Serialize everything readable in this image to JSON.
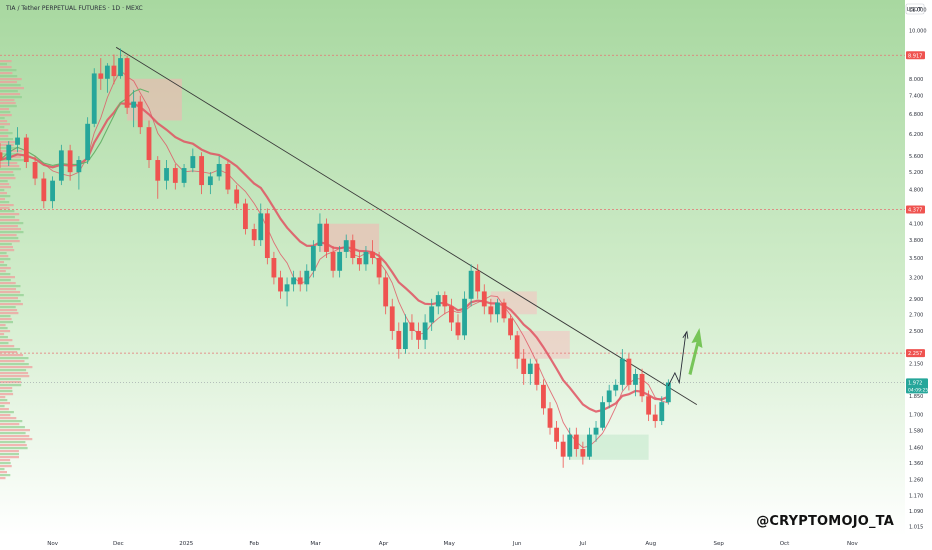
{
  "header": {
    "title": "TIA / Tether PERPETUAL FUTURES · 1D · MEXC"
  },
  "watermark": "@CRYPTOMOJO_TA",
  "colors": {
    "up": "#26a69a",
    "down": "#ef5350",
    "ema": "#e05262",
    "sma": "#69b36b",
    "trend": "#3a3a3a",
    "level": "#e57373",
    "projection": "#2a2e39",
    "arrow": "#6cc04a",
    "current_tag": "#26a69a",
    "level_tag": "#ef5350"
  },
  "icons": [
    "up-arrow-icon"
  ],
  "chart_data": {
    "type": "candlestick",
    "title": "TIA / Tether PERPETUAL FUTURES · 1D · MEXC",
    "y_axis": {
      "unit": "USDT",
      "scale": "log",
      "range": [
        0.98,
        11.4
      ],
      "ticks": [
        "11.000",
        "10.000",
        "8.000",
        "7.400",
        "6.800",
        "6.200",
        "5.600",
        "5.200",
        "4.800",
        "4.100",
        "3.800",
        "3.500",
        "3.200",
        "2.900",
        "2.700",
        "2.500",
        "2.150",
        "1.850",
        "1.700",
        "1.580",
        "1.460",
        "1.360",
        "1.260",
        "1.170",
        "1.090",
        "1.015"
      ],
      "tick_values": [
        11.0,
        10.0,
        8.0,
        7.4,
        6.8,
        6.2,
        5.6,
        5.2,
        4.8,
        4.1,
        3.8,
        3.5,
        3.2,
        2.9,
        2.7,
        2.5,
        2.15,
        1.85,
        1.7,
        1.58,
        1.46,
        1.36,
        1.26,
        1.17,
        1.09,
        1.015
      ]
    },
    "x_axis": {
      "range": [
        "2024-10-08",
        "2025-11-25"
      ],
      "ticks": [
        "Nov",
        "Dec",
        "2025",
        "Feb",
        "Mar",
        "Apr",
        "May",
        "Jun",
        "Jul",
        "Aug",
        "Sep",
        "Oct",
        "Nov"
      ],
      "tick_dates": [
        "2024-11-01",
        "2024-12-01",
        "2025-01-01",
        "2025-02-01",
        "2025-03-01",
        "2025-04-01",
        "2025-05-01",
        "2025-06-01",
        "2025-07-01",
        "2025-08-01",
        "2025-09-01",
        "2025-10-01",
        "2025-11-01"
      ]
    },
    "horizontal_levels": [
      {
        "price": 8.917,
        "label": "8.917"
      },
      {
        "price": 4.377,
        "label": "4.377"
      },
      {
        "price": 2.257,
        "label": "2.257"
      }
    ],
    "current_price": {
      "price": 1.972,
      "label": "1.972",
      "countdown": "04:09:25"
    },
    "trendline": {
      "start": {
        "date": "2024-11-30",
        "price": 9.25
      },
      "end": {
        "date": "2025-08-22",
        "price": 1.78
      }
    },
    "projection": [
      {
        "date": "2025-08-09",
        "price": 1.94
      },
      {
        "date": "2025-08-12",
        "price": 2.06
      },
      {
        "date": "2025-08-14",
        "price": 1.97
      },
      {
        "date": "2025-08-17",
        "price": 2.48
      }
    ],
    "candles": [
      {
        "date": "2024-10-08",
        "open": 5.7,
        "high": 5.95,
        "low": 5.3,
        "close": 5.5
      },
      {
        "date": "2024-10-12",
        "open": 5.5,
        "high": 6.0,
        "low": 5.35,
        "close": 5.9
      },
      {
        "date": "2024-10-16",
        "open": 5.9,
        "high": 6.4,
        "low": 5.7,
        "close": 6.1
      },
      {
        "date": "2024-10-20",
        "open": 6.1,
        "high": 6.2,
        "low": 5.3,
        "close": 5.45
      },
      {
        "date": "2024-10-24",
        "open": 5.45,
        "high": 5.6,
        "low": 4.9,
        "close": 5.05
      },
      {
        "date": "2024-10-28",
        "open": 5.05,
        "high": 5.2,
        "low": 4.4,
        "close": 4.55
      },
      {
        "date": "2024-11-01",
        "open": 4.55,
        "high": 5.1,
        "low": 4.4,
        "close": 5.0
      },
      {
        "date": "2024-11-05",
        "open": 5.0,
        "high": 5.9,
        "low": 4.9,
        "close": 5.75
      },
      {
        "date": "2024-11-09",
        "open": 5.75,
        "high": 5.9,
        "low": 5.0,
        "close": 5.2
      },
      {
        "date": "2024-11-13",
        "open": 5.2,
        "high": 5.6,
        "low": 4.8,
        "close": 5.5
      },
      {
        "date": "2024-11-17",
        "open": 5.5,
        "high": 6.7,
        "low": 5.4,
        "close": 6.5
      },
      {
        "date": "2024-11-20",
        "open": 6.5,
        "high": 8.4,
        "low": 6.4,
        "close": 8.2
      },
      {
        "date": "2024-11-23",
        "open": 8.2,
        "high": 8.8,
        "low": 7.6,
        "close": 8.0
      },
      {
        "date": "2024-11-26",
        "open": 8.0,
        "high": 8.6,
        "low": 7.5,
        "close": 8.5
      },
      {
        "date": "2024-11-29",
        "open": 8.5,
        "high": 8.95,
        "low": 7.8,
        "close": 8.1
      },
      {
        "date": "2024-12-02",
        "open": 8.1,
        "high": 9.2,
        "low": 8.0,
        "close": 8.8
      },
      {
        "date": "2024-12-05",
        "open": 8.8,
        "high": 8.9,
        "low": 6.8,
        "close": 7.0
      },
      {
        "date": "2024-12-08",
        "open": 7.0,
        "high": 7.6,
        "low": 6.4,
        "close": 7.2
      },
      {
        "date": "2024-12-11",
        "open": 7.2,
        "high": 7.4,
        "low": 6.2,
        "close": 6.4
      },
      {
        "date": "2024-12-15",
        "open": 6.4,
        "high": 6.6,
        "low": 5.3,
        "close": 5.5
      },
      {
        "date": "2024-12-19",
        "open": 5.5,
        "high": 5.6,
        "low": 4.6,
        "close": 5.0
      },
      {
        "date": "2024-12-23",
        "open": 5.0,
        "high": 5.5,
        "low": 4.8,
        "close": 5.3
      },
      {
        "date": "2024-12-27",
        "open": 5.3,
        "high": 5.4,
        "low": 4.8,
        "close": 4.95
      },
      {
        "date": "2024-12-31",
        "open": 4.95,
        "high": 5.4,
        "low": 4.85,
        "close": 5.3
      },
      {
        "date": "2025-01-04",
        "open": 5.3,
        "high": 5.8,
        "low": 5.2,
        "close": 5.6
      },
      {
        "date": "2025-01-08",
        "open": 5.6,
        "high": 5.7,
        "low": 4.7,
        "close": 4.9
      },
      {
        "date": "2025-01-12",
        "open": 4.9,
        "high": 5.2,
        "low": 4.7,
        "close": 5.1
      },
      {
        "date": "2025-01-16",
        "open": 5.1,
        "high": 5.6,
        "low": 5.0,
        "close": 5.4
      },
      {
        "date": "2025-01-20",
        "open": 5.4,
        "high": 5.5,
        "low": 4.7,
        "close": 4.8
      },
      {
        "date": "2025-01-24",
        "open": 4.8,
        "high": 4.9,
        "low": 4.4,
        "close": 4.5
      },
      {
        "date": "2025-01-28",
        "open": 4.5,
        "high": 4.6,
        "low": 3.9,
        "close": 4.0
      },
      {
        "date": "2025-02-01",
        "open": 4.0,
        "high": 4.1,
        "low": 3.7,
        "close": 3.8
      },
      {
        "date": "2025-02-04",
        "open": 3.8,
        "high": 4.5,
        "low": 3.7,
        "close": 4.3
      },
      {
        "date": "2025-02-07",
        "open": 4.3,
        "high": 4.4,
        "low": 3.4,
        "close": 3.5
      },
      {
        "date": "2025-02-10",
        "open": 3.5,
        "high": 3.6,
        "low": 3.1,
        "close": 3.2
      },
      {
        "date": "2025-02-13",
        "open": 3.2,
        "high": 3.3,
        "low": 2.9,
        "close": 3.0
      },
      {
        "date": "2025-02-16",
        "open": 3.0,
        "high": 3.2,
        "low": 2.8,
        "close": 3.1
      },
      {
        "date": "2025-02-19",
        "open": 3.1,
        "high": 3.3,
        "low": 3.0,
        "close": 3.2
      },
      {
        "date": "2025-02-22",
        "open": 3.2,
        "high": 3.3,
        "low": 3.0,
        "close": 3.1
      },
      {
        "date": "2025-02-25",
        "open": 3.1,
        "high": 3.4,
        "low": 3.0,
        "close": 3.3
      },
      {
        "date": "2025-02-28",
        "open": 3.3,
        "high": 3.8,
        "low": 3.2,
        "close": 3.7
      },
      {
        "date": "2025-03-03",
        "open": 3.7,
        "high": 4.3,
        "low": 3.6,
        "close": 4.1
      },
      {
        "date": "2025-03-06",
        "open": 4.1,
        "high": 4.2,
        "low": 3.5,
        "close": 3.6
      },
      {
        "date": "2025-03-09",
        "open": 3.6,
        "high": 3.7,
        "low": 3.2,
        "close": 3.3
      },
      {
        "date": "2025-03-12",
        "open": 3.3,
        "high": 3.7,
        "low": 3.2,
        "close": 3.6
      },
      {
        "date": "2025-03-15",
        "open": 3.6,
        "high": 3.9,
        "low": 3.5,
        "close": 3.8
      },
      {
        "date": "2025-03-18",
        "open": 3.8,
        "high": 3.9,
        "low": 3.4,
        "close": 3.5
      },
      {
        "date": "2025-03-21",
        "open": 3.5,
        "high": 3.6,
        "low": 3.3,
        "close": 3.4
      },
      {
        "date": "2025-03-24",
        "open": 3.4,
        "high": 3.7,
        "low": 3.3,
        "close": 3.6
      },
      {
        "date": "2025-03-27",
        "open": 3.6,
        "high": 3.8,
        "low": 3.4,
        "close": 3.5
      },
      {
        "date": "2025-03-30",
        "open": 3.5,
        "high": 3.6,
        "low": 3.1,
        "close": 3.2
      },
      {
        "date": "2025-04-02",
        "open": 3.2,
        "high": 3.3,
        "low": 2.7,
        "close": 2.8
      },
      {
        "date": "2025-04-05",
        "open": 2.8,
        "high": 2.9,
        "low": 2.4,
        "close": 2.5
      },
      {
        "date": "2025-04-08",
        "open": 2.5,
        "high": 2.6,
        "low": 2.2,
        "close": 2.3
      },
      {
        "date": "2025-04-11",
        "open": 2.3,
        "high": 2.7,
        "low": 2.25,
        "close": 2.6
      },
      {
        "date": "2025-04-14",
        "open": 2.6,
        "high": 2.7,
        "low": 2.4,
        "close": 2.5
      },
      {
        "date": "2025-04-17",
        "open": 2.5,
        "high": 2.6,
        "low": 2.3,
        "close": 2.4
      },
      {
        "date": "2025-04-20",
        "open": 2.4,
        "high": 2.7,
        "low": 2.3,
        "close": 2.6
      },
      {
        "date": "2025-04-23",
        "open": 2.6,
        "high": 2.9,
        "low": 2.5,
        "close": 2.8
      },
      {
        "date": "2025-04-26",
        "open": 2.8,
        "high": 3.0,
        "low": 2.7,
        "close": 2.95
      },
      {
        "date": "2025-04-29",
        "open": 2.95,
        "high": 3.0,
        "low": 2.7,
        "close": 2.8
      },
      {
        "date": "2025-05-02",
        "open": 2.8,
        "high": 2.9,
        "low": 2.5,
        "close": 2.6
      },
      {
        "date": "2025-05-05",
        "open": 2.6,
        "high": 2.7,
        "low": 2.4,
        "close": 2.45
      },
      {
        "date": "2025-05-08",
        "open": 2.45,
        "high": 3.0,
        "low": 2.4,
        "close": 2.9
      },
      {
        "date": "2025-05-11",
        "open": 2.9,
        "high": 3.4,
        "low": 2.8,
        "close": 3.3
      },
      {
        "date": "2025-05-14",
        "open": 3.3,
        "high": 3.4,
        "low": 2.9,
        "close": 3.0
      },
      {
        "date": "2025-05-17",
        "open": 3.0,
        "high": 3.1,
        "low": 2.7,
        "close": 2.8
      },
      {
        "date": "2025-05-20",
        "open": 2.8,
        "high": 2.9,
        "low": 2.6,
        "close": 2.7
      },
      {
        "date": "2025-05-23",
        "open": 2.7,
        "high": 2.9,
        "low": 2.6,
        "close": 2.85
      },
      {
        "date": "2025-05-26",
        "open": 2.85,
        "high": 2.9,
        "low": 2.6,
        "close": 2.65
      },
      {
        "date": "2025-05-29",
        "open": 2.65,
        "high": 2.7,
        "low": 2.4,
        "close": 2.45
      },
      {
        "date": "2025-06-01",
        "open": 2.45,
        "high": 2.5,
        "low": 2.1,
        "close": 2.2
      },
      {
        "date": "2025-06-04",
        "open": 2.2,
        "high": 2.3,
        "low": 1.95,
        "close": 2.05
      },
      {
        "date": "2025-06-07",
        "open": 2.05,
        "high": 2.2,
        "low": 1.95,
        "close": 2.15
      },
      {
        "date": "2025-06-10",
        "open": 2.15,
        "high": 2.2,
        "low": 1.9,
        "close": 1.95
      },
      {
        "date": "2025-06-13",
        "open": 1.95,
        "high": 2.0,
        "low": 1.7,
        "close": 1.75
      },
      {
        "date": "2025-06-16",
        "open": 1.75,
        "high": 1.8,
        "low": 1.55,
        "close": 1.6
      },
      {
        "date": "2025-06-19",
        "open": 1.6,
        "high": 1.65,
        "low": 1.45,
        "close": 1.5
      },
      {
        "date": "2025-06-22",
        "open": 1.5,
        "high": 1.55,
        "low": 1.33,
        "close": 1.4
      },
      {
        "date": "2025-06-25",
        "open": 1.4,
        "high": 1.6,
        "low": 1.38,
        "close": 1.55
      },
      {
        "date": "2025-06-28",
        "open": 1.55,
        "high": 1.6,
        "low": 1.4,
        "close": 1.45
      },
      {
        "date": "2025-07-01",
        "open": 1.45,
        "high": 1.5,
        "low": 1.35,
        "close": 1.4
      },
      {
        "date": "2025-07-04",
        "open": 1.4,
        "high": 1.6,
        "low": 1.38,
        "close": 1.55
      },
      {
        "date": "2025-07-07",
        "open": 1.55,
        "high": 1.65,
        "low": 1.5,
        "close": 1.6
      },
      {
        "date": "2025-07-10",
        "open": 1.6,
        "high": 1.85,
        "low": 1.58,
        "close": 1.8
      },
      {
        "date": "2025-07-13",
        "open": 1.8,
        "high": 1.95,
        "low": 1.75,
        "close": 1.9
      },
      {
        "date": "2025-07-16",
        "open": 1.9,
        "high": 2.0,
        "low": 1.85,
        "close": 1.95
      },
      {
        "date": "2025-07-19",
        "open": 1.95,
        "high": 2.3,
        "low": 1.9,
        "close": 2.2
      },
      {
        "date": "2025-07-22",
        "open": 2.2,
        "high": 2.25,
        "low": 1.9,
        "close": 1.95
      },
      {
        "date": "2025-07-25",
        "open": 1.95,
        "high": 2.1,
        "low": 1.85,
        "close": 2.05
      },
      {
        "date": "2025-07-28",
        "open": 2.05,
        "high": 2.1,
        "low": 1.8,
        "close": 1.85
      },
      {
        "date": "2025-07-31",
        "open": 1.85,
        "high": 1.9,
        "low": 1.65,
        "close": 1.7
      },
      {
        "date": "2025-08-03",
        "open": 1.7,
        "high": 1.78,
        "low": 1.6,
        "close": 1.65
      },
      {
        "date": "2025-08-06",
        "open": 1.65,
        "high": 1.85,
        "low": 1.62,
        "close": 1.8
      },
      {
        "date": "2025-08-09",
        "open": 1.8,
        "high": 2.0,
        "low": 1.78,
        "close": 1.97
      }
    ]
  }
}
